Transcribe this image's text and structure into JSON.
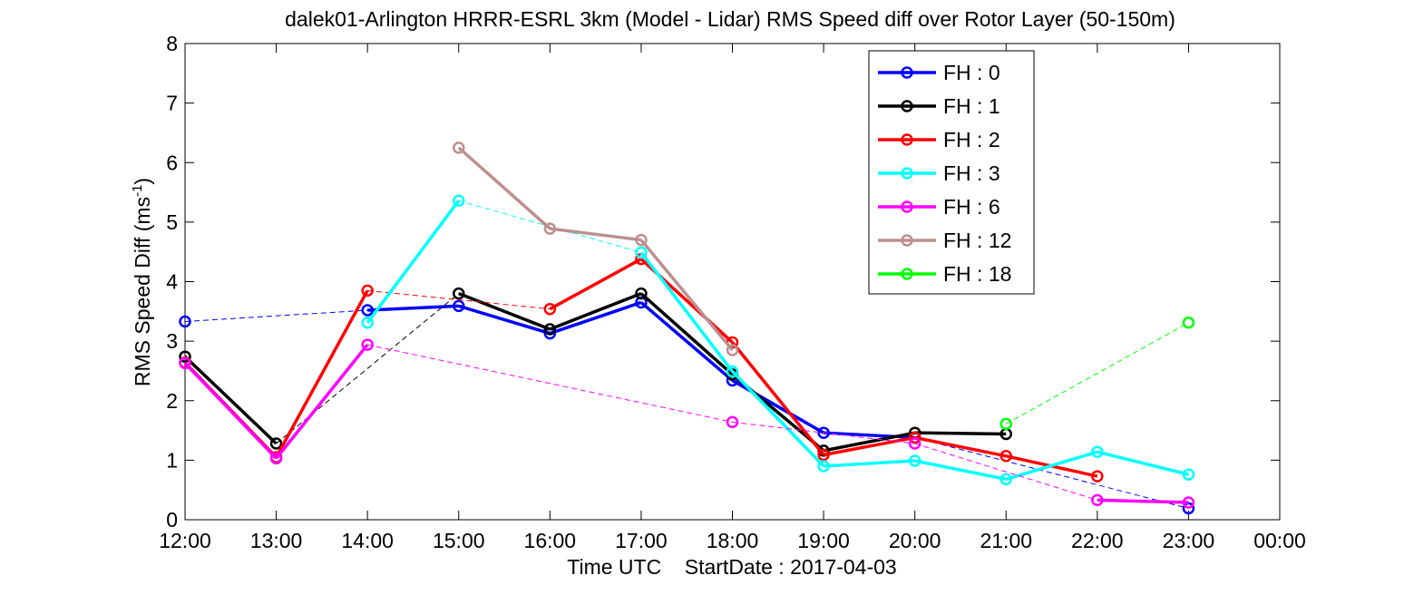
{
  "chart_data": {
    "type": "line",
    "title": "dalek01-Arlington HRRR-ESRL 3km (Model - Lidar) RMS Speed diff over Rotor Layer (50-150m)",
    "xlabel": "Time UTC    StartDate : 2017-04-03",
    "ylabel": "RMS Speed Diff (ms",
    "ylabel_sup": "-1",
    "ylabel_tail": ")",
    "xlim": [
      12,
      24
    ],
    "ylim": [
      0,
      8
    ],
    "xticks": [
      {
        "value": 12,
        "label": "12:00"
      },
      {
        "value": 13,
        "label": "13:00"
      },
      {
        "value": 14,
        "label": "14:00"
      },
      {
        "value": 15,
        "label": "15:00"
      },
      {
        "value": 16,
        "label": "16:00"
      },
      {
        "value": 17,
        "label": "17:00"
      },
      {
        "value": 18,
        "label": "18:00"
      },
      {
        "value": 19,
        "label": "19:00"
      },
      {
        "value": 20,
        "label": "20:00"
      },
      {
        "value": 21,
        "label": "21:00"
      },
      {
        "value": 22,
        "label": "22:00"
      },
      {
        "value": 23,
        "label": "23:00"
      },
      {
        "value": 24,
        "label": "00:00"
      }
    ],
    "yticks": [
      {
        "value": 0,
        "label": "0"
      },
      {
        "value": 1,
        "label": "1"
      },
      {
        "value": 2,
        "label": "2"
      },
      {
        "value": 3,
        "label": "3"
      },
      {
        "value": 4,
        "label": "4"
      },
      {
        "value": 5,
        "label": "5"
      },
      {
        "value": 6,
        "label": "6"
      },
      {
        "value": 7,
        "label": "7"
      },
      {
        "value": 8,
        "label": "8"
      }
    ],
    "grid": false,
    "legend_position": "top-right",
    "series": [
      {
        "name": "FH : 0",
        "color": "#0000ff",
        "points": [
          [
            12,
            3.33
          ],
          [
            14,
            3.52
          ],
          [
            15,
            3.59
          ],
          [
            16,
            3.13
          ],
          [
            17,
            3.65
          ],
          [
            18,
            2.34
          ],
          [
            19,
            1.46
          ],
          [
            20,
            1.38
          ],
          [
            23,
            0.19
          ]
        ]
      },
      {
        "name": "FH : 1",
        "color": "#000000",
        "points": [
          [
            12,
            2.74
          ],
          [
            13,
            1.28
          ],
          [
            15,
            3.8
          ],
          [
            16,
            3.2
          ],
          [
            17,
            3.8
          ],
          [
            18,
            2.44
          ],
          [
            19,
            1.16
          ],
          [
            20,
            1.46
          ],
          [
            21,
            1.44
          ]
        ]
      },
      {
        "name": "FH : 2",
        "color": "#ff0000",
        "points": [
          [
            12,
            2.64
          ],
          [
            13,
            1.05
          ],
          [
            14,
            3.85
          ],
          [
            16,
            3.54
          ],
          [
            17,
            4.38
          ],
          [
            18,
            2.98
          ],
          [
            19,
            1.09
          ],
          [
            20,
            1.38
          ],
          [
            21,
            1.07
          ],
          [
            22,
            0.73
          ]
        ]
      },
      {
        "name": "FH : 3",
        "color": "#00ffff",
        "points": [
          [
            14,
            3.31
          ],
          [
            15,
            5.36
          ],
          [
            17,
            4.49
          ],
          [
            18,
            2.49
          ],
          [
            19,
            0.9
          ],
          [
            20,
            0.99
          ],
          [
            21,
            0.68
          ],
          [
            22,
            1.14
          ],
          [
            23,
            0.76
          ]
        ]
      },
      {
        "name": "FH : 6",
        "color": "#ff00ff",
        "points": [
          [
            12,
            2.63
          ],
          [
            13,
            1.03
          ],
          [
            14,
            2.94
          ],
          [
            18,
            1.64
          ],
          [
            20,
            1.28
          ],
          [
            22,
            0.33
          ],
          [
            23,
            0.29
          ]
        ]
      },
      {
        "name": "FH : 12",
        "color": "#bc8f8f",
        "points": [
          [
            15,
            6.25
          ],
          [
            16,
            4.89
          ],
          [
            17,
            4.7
          ],
          [
            18,
            2.85
          ]
        ]
      },
      {
        "name": "FH : 18",
        "color": "#00ff00",
        "points": [
          [
            21,
            1.61
          ],
          [
            23,
            3.31
          ]
        ]
      }
    ]
  }
}
